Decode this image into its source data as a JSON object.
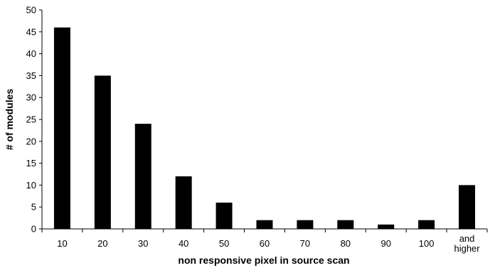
{
  "chart_data": {
    "type": "bar",
    "title": "",
    "xlabel": "non responsive pixel in source scan",
    "ylabel": "# of modules",
    "categories": [
      "10",
      "20",
      "30",
      "40",
      "50",
      "60",
      "70",
      "80",
      "90",
      "100",
      "and higher"
    ],
    "values": [
      46,
      35,
      24,
      12,
      6,
      2,
      2,
      2,
      1,
      2,
      10
    ],
    "ylim": [
      0,
      50
    ],
    "yticks": [
      0,
      5,
      10,
      15,
      20,
      25,
      30,
      35,
      40,
      45,
      50
    ],
    "grid": false,
    "legend": "none",
    "colors": {
      "bar": "#000000",
      "axis": "#000000",
      "background": "#ffffff"
    }
  }
}
